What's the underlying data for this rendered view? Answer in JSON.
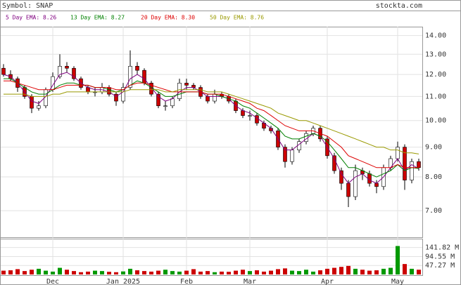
{
  "chart_data": {
    "type": "candlestick",
    "title": "Symbol: SNAP",
    "source": "stockta.com",
    "log_scale": true,
    "grid": true,
    "categories": [
      null,
      null,
      null,
      null,
      null,
      null,
      null,
      "Dec",
      null,
      null,
      null,
      null,
      null,
      null,
      null,
      null,
      null,
      "Jan 2025",
      null,
      null,
      null,
      null,
      null,
      null,
      null,
      null,
      "Feb",
      null,
      null,
      null,
      null,
      null,
      null,
      null,
      null,
      "Mar",
      null,
      null,
      null,
      null,
      null,
      null,
      null,
      null,
      null,
      null,
      "Apr",
      null,
      null,
      null,
      null,
      null,
      null,
      null,
      null,
      null,
      "May",
      null,
      null,
      null
    ],
    "open": [
      12.3,
      12.0,
      11.8,
      11.4,
      11.0,
      10.5,
      10.6,
      11.3,
      11.9,
      12.4,
      12.3,
      11.8,
      11.4,
      11.2,
      11.2,
      11.4,
      11.1,
      10.8,
      11.4,
      12.4,
      12.2,
      11.6,
      11.1,
      10.6,
      10.6,
      10.9,
      11.6,
      11.5,
      11.4,
      11.0,
      10.8,
      11.1,
      11.0,
      10.8,
      10.4,
      10.2,
      10.2,
      9.9,
      9.7,
      9.6,
      9.0,
      8.5,
      8.9,
      9.2,
      9.5,
      9.7,
      9.3,
      8.7,
      8.2,
      7.8,
      7.4,
      8.2,
      8.1,
      7.8,
      7.7,
      8.3,
      8.6,
      9.0,
      7.9,
      8.5
    ],
    "high": [
      12.5,
      12.2,
      11.9,
      11.5,
      11.1,
      10.8,
      11.4,
      12.1,
      13.0,
      12.6,
      12.4,
      11.9,
      11.5,
      11.4,
      11.6,
      11.5,
      11.2,
      11.6,
      13.2,
      12.6,
      12.3,
      11.7,
      11.2,
      10.8,
      11.0,
      11.8,
      11.8,
      11.6,
      11.5,
      11.1,
      11.3,
      11.2,
      11.1,
      10.9,
      10.5,
      10.4,
      10.3,
      10.0,
      9.8,
      9.7,
      9.1,
      9.0,
      9.3,
      9.6,
      9.8,
      9.8,
      9.4,
      8.8,
      8.3,
      7.9,
      8.4,
      8.3,
      8.2,
      7.9,
      8.4,
      8.7,
      9.2,
      9.1,
      8.6,
      8.6
    ],
    "low": [
      11.9,
      11.7,
      11.2,
      10.9,
      10.3,
      10.4,
      10.5,
      11.2,
      11.8,
      12.1,
      11.7,
      11.3,
      11.1,
      11.0,
      11.1,
      11.0,
      10.6,
      10.7,
      11.3,
      12.0,
      11.5,
      11.0,
      10.5,
      10.4,
      10.5,
      10.8,
      11.3,
      11.3,
      10.9,
      10.7,
      10.7,
      10.9,
      10.7,
      10.3,
      10.1,
      10.0,
      9.8,
      9.6,
      9.5,
      8.9,
      8.3,
      8.4,
      8.8,
      9.1,
      9.4,
      9.2,
      8.6,
      8.1,
      7.6,
      7.1,
      7.3,
      7.9,
      7.7,
      7.5,
      7.6,
      8.2,
      8.5,
      7.6,
      7.8,
      8.2
    ],
    "close": [
      12.0,
      11.8,
      11.4,
      11.0,
      10.5,
      10.6,
      11.3,
      11.9,
      12.4,
      12.3,
      11.8,
      11.4,
      11.2,
      11.2,
      11.4,
      11.1,
      10.8,
      11.4,
      12.4,
      12.2,
      11.6,
      11.1,
      10.6,
      10.6,
      10.9,
      11.6,
      11.5,
      11.4,
      11.0,
      10.8,
      11.1,
      11.0,
      10.8,
      10.4,
      10.2,
      10.2,
      9.9,
      9.7,
      9.6,
      9.0,
      8.5,
      8.9,
      9.2,
      9.5,
      9.7,
      9.3,
      8.7,
      8.2,
      7.8,
      7.4,
      8.2,
      8.1,
      7.8,
      7.7,
      8.3,
      8.6,
      9.0,
      7.9,
      8.5,
      8.3
    ],
    "volume": [
      20,
      22,
      28,
      18,
      25,
      30,
      20,
      15,
      35,
      25,
      18,
      12,
      15,
      20,
      18,
      14,
      12,
      16,
      30,
      22,
      18,
      15,
      20,
      25,
      18,
      15,
      20,
      28,
      15,
      18,
      12,
      15,
      14,
      20,
      25,
      18,
      22,
      15,
      20,
      28,
      32,
      20,
      18,
      25,
      15,
      22,
      30,
      35,
      40,
      45,
      30,
      25,
      20,
      22,
      30,
      35,
      150,
      55,
      30,
      25
    ],
    "up_color": "#ffffff",
    "down_color": "#cc0000",
    "volume_up_color": "#009900",
    "volume_down_color": "#cc0000",
    "series": [
      {
        "name": "5 Day EMA: 8.26",
        "color": "#800080",
        "values": [
          12.0,
          11.9,
          11.6,
          11.2,
          10.8,
          10.7,
          11.0,
          11.5,
          12.0,
          12.1,
          11.9,
          11.6,
          11.4,
          11.3,
          11.3,
          11.2,
          11.0,
          11.2,
          11.8,
          12.0,
          11.8,
          11.4,
          11.0,
          10.8,
          10.9,
          11.2,
          11.4,
          11.4,
          11.2,
          11.0,
          11.0,
          11.0,
          10.9,
          10.6,
          10.4,
          10.3,
          10.1,
          9.9,
          9.7,
          9.3,
          8.9,
          8.9,
          9.1,
          9.3,
          9.5,
          9.4,
          9.0,
          8.6,
          8.1,
          7.8,
          8.0,
          8.1,
          7.9,
          7.8,
          8.0,
          8.3,
          8.6,
          8.2,
          8.4,
          8.26
        ]
      },
      {
        "name": "13 Day EMA: 8.27",
        "color": "#008000",
        "values": [
          11.8,
          11.8,
          11.6,
          11.4,
          11.2,
          11.1,
          11.1,
          11.3,
          11.5,
          11.6,
          11.6,
          11.5,
          11.5,
          11.4,
          11.4,
          11.3,
          11.2,
          11.3,
          11.5,
          11.7,
          11.6,
          11.4,
          11.2,
          11.0,
          11.0,
          11.1,
          11.2,
          11.2,
          11.2,
          11.1,
          11.1,
          11.0,
          10.9,
          10.8,
          10.6,
          10.5,
          10.3,
          10.1,
          9.9,
          9.7,
          9.4,
          9.3,
          9.3,
          9.4,
          9.5,
          9.4,
          9.2,
          8.9,
          8.6,
          8.3,
          8.3,
          8.2,
          8.1,
          8.0,
          8.1,
          8.2,
          8.4,
          8.2,
          8.3,
          8.27
        ]
      },
      {
        "name": "20 Day EMA: 8.30",
        "color": "#dd0000",
        "values": [
          11.7,
          11.7,
          11.6,
          11.5,
          11.4,
          11.3,
          11.3,
          11.3,
          11.4,
          11.5,
          11.5,
          11.5,
          11.5,
          11.4,
          11.4,
          11.4,
          11.3,
          11.3,
          11.5,
          11.6,
          11.6,
          11.5,
          11.4,
          11.3,
          11.2,
          11.2,
          11.2,
          11.2,
          11.2,
          11.1,
          11.1,
          11.1,
          11.0,
          10.9,
          10.8,
          10.7,
          10.5,
          10.4,
          10.2,
          10.0,
          9.8,
          9.7,
          9.6,
          9.6,
          9.6,
          9.5,
          9.4,
          9.2,
          9.0,
          8.7,
          8.6,
          8.5,
          8.4,
          8.3,
          8.3,
          8.3,
          8.4,
          8.3,
          8.3,
          8.3
        ]
      },
      {
        "name": "50 Day EMA: 8.76",
        "color": "#999900",
        "values": [
          11.1,
          11.1,
          11.1,
          11.1,
          11.0,
          11.0,
          11.0,
          11.1,
          11.1,
          11.2,
          11.2,
          11.2,
          11.2,
          11.2,
          11.2,
          11.2,
          11.2,
          11.2,
          11.3,
          11.3,
          11.3,
          11.3,
          11.3,
          11.2,
          11.2,
          11.3,
          11.3,
          11.3,
          11.3,
          11.2,
          11.2,
          11.2,
          11.1,
          11.0,
          10.9,
          10.8,
          10.7,
          10.6,
          10.5,
          10.3,
          10.2,
          10.1,
          10.0,
          10.0,
          9.9,
          9.8,
          9.7,
          9.6,
          9.5,
          9.4,
          9.3,
          9.2,
          9.1,
          9.0,
          9.0,
          8.9,
          8.9,
          8.8,
          8.8,
          8.76
        ]
      }
    ],
    "ylim": [
      6.3,
      14.5
    ],
    "yticks": [
      {
        "value": 14,
        "label": "14.00"
      },
      {
        "value": 13,
        "label": "13.00"
      },
      {
        "value": 12,
        "label": "12.00"
      },
      {
        "value": 11,
        "label": "11.00"
      },
      {
        "value": 10,
        "label": "10.00"
      },
      {
        "value": 9,
        "label": "9.00"
      },
      {
        "value": 8,
        "label": "8.00"
      },
      {
        "value": 7,
        "label": "7.00"
      }
    ],
    "vlim": [
      0,
      185
    ],
    "vticks": [
      {
        "value": 141.82,
        "label": "141.82 M"
      },
      {
        "value": 94.55,
        "label": "94.55 M"
      },
      {
        "value": 47.27,
        "label": "47.27 M"
      }
    ]
  }
}
